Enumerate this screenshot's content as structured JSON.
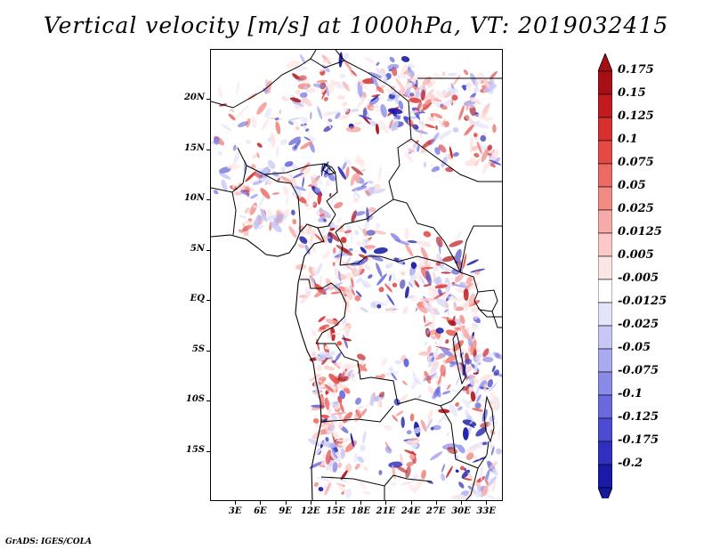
{
  "title": "Vertical velocity [m/s] at 1000hPa, VT: 2019032415",
  "credit": "GrADS: IGES/COLA",
  "map": {
    "lon_range": [
      0,
      35
    ],
    "lat_range": [
      -20,
      25
    ],
    "lat_labels": [
      {
        "value": 20,
        "label": "20N"
      },
      {
        "value": 15,
        "label": "15N"
      },
      {
        "value": 10,
        "label": "10N"
      },
      {
        "value": 5,
        "label": "5N"
      },
      {
        "value": 0,
        "label": "EQ"
      },
      {
        "value": -5,
        "label": "5S"
      },
      {
        "value": -10,
        "label": "10S"
      },
      {
        "value": -15,
        "label": "15S"
      }
    ],
    "lon_labels": [
      {
        "value": 3,
        "label": "3E"
      },
      {
        "value": 6,
        "label": "6E"
      },
      {
        "value": 9,
        "label": "9E"
      },
      {
        "value": 12,
        "label": "12E"
      },
      {
        "value": 15,
        "label": "15E"
      },
      {
        "value": 18,
        "label": "18E"
      },
      {
        "value": 21,
        "label": "21E"
      },
      {
        "value": 24,
        "label": "24E"
      },
      {
        "value": 27,
        "label": "27E"
      },
      {
        "value": 30,
        "label": "30E"
      },
      {
        "value": 33,
        "label": "33E"
      }
    ]
  },
  "colorbar": {
    "levels": [
      {
        "label": "0.175",
        "color": "#a50f15"
      },
      {
        "label": "0.15",
        "color": "#c21b1f"
      },
      {
        "label": "0.125",
        "color": "#d7302f"
      },
      {
        "label": "0.1",
        "color": "#e34a44"
      },
      {
        "label": "0.075",
        "color": "#ec6a63"
      },
      {
        "label": "0.05",
        "color": "#f28a84"
      },
      {
        "label": "0.025",
        "color": "#f7aaa7"
      },
      {
        "label": "0.0125",
        "color": "#fbcac8"
      },
      {
        "label": "0.005",
        "color": "#fde5e4"
      },
      {
        "label": "-0.005",
        "color": "#ffffff"
      },
      {
        "label": "-0.0125",
        "color": "#e4e4fb"
      },
      {
        "label": "-0.025",
        "color": "#c8c8f6"
      },
      {
        "label": "-0.05",
        "color": "#aaaaf0"
      },
      {
        "label": "-0.075",
        "color": "#8a8ae8"
      },
      {
        "label": "-0.1",
        "color": "#6a6ade"
      },
      {
        "label": "-0.125",
        "color": "#4c4cd2"
      },
      {
        "label": "-0.175",
        "color": "#3030c0"
      },
      {
        "label": "-0.2",
        "color": "#1a1aa8"
      }
    ],
    "top_color": "#a50f15",
    "bottom_color": "#18189c"
  }
}
